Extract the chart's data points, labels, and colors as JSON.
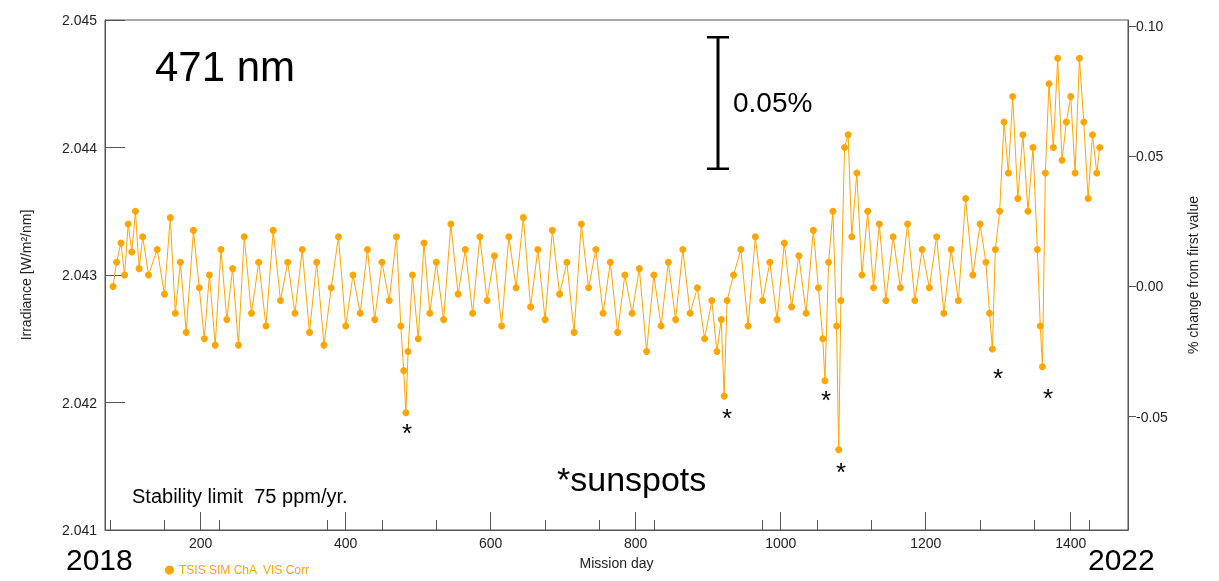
{
  "chart_data": {
    "type": "line",
    "title": "471 nm",
    "xlabel": "Mission day",
    "ylabel": "Irradiance [W/m²/nm]",
    "y2label": "% change from first value",
    "x": [
      79,
      84,
      90,
      95,
      100,
      105,
      110,
      115,
      120,
      128,
      140,
      150,
      158,
      165,
      172,
      180,
      190,
      198,
      205,
      212,
      220,
      228,
      236,
      244,
      252,
      260,
      270,
      280,
      290,
      300,
      310,
      320,
      330,
      340,
      350,
      360,
      370,
      380,
      390,
      400,
      410,
      420,
      430,
      440,
      450,
      460,
      470,
      476,
      480,
      483,
      486,
      492,
      500,
      508,
      516,
      525,
      535,
      545,
      555,
      565,
      575,
      585,
      595,
      605,
      615,
      625,
      635,
      645,
      655,
      665,
      675,
      685,
      695,
      705,
      715,
      725,
      735,
      745,
      755,
      765,
      775,
      785,
      795,
      805,
      815,
      825,
      835,
      845,
      855,
      865,
      875,
      885,
      895,
      905,
      912,
      918,
      922,
      926,
      935,
      945,
      955,
      965,
      975,
      985,
      995,
      1005,
      1015,
      1025,
      1035,
      1045,
      1052,
      1058,
      1061,
      1066,
      1072,
      1077,
      1080,
      1083,
      1088,
      1093,
      1098,
      1105,
      1112,
      1120,
      1128,
      1136,
      1145,
      1155,
      1165,
      1175,
      1185,
      1195,
      1205,
      1215,
      1225,
      1235,
      1245,
      1255,
      1265,
      1275,
      1283,
      1288,
      1292,
      1296,
      1302,
      1308,
      1314,
      1320,
      1327,
      1334,
      1341,
      1348,
      1354,
      1358,
      1361,
      1365,
      1370,
      1376,
      1382,
      1388,
      1394,
      1400,
      1406,
      1412,
      1418,
      1424,
      1430,
      1436,
      1440
    ],
    "series": [
      {
        "name": "TSIS SIM ChA  VIS Corr",
        "color": "#ffa500",
        "values": [
          2.04291,
          2.0431,
          2.04325,
          2.043,
          2.0434,
          2.04318,
          2.0435,
          2.04305,
          2.0433,
          2.043,
          2.0432,
          2.04285,
          2.04345,
          2.0427,
          2.0431,
          2.04255,
          2.04335,
          2.0429,
          2.0425,
          2.043,
          2.04245,
          2.0432,
          2.04265,
          2.04305,
          2.04245,
          2.0433,
          2.0427,
          2.0431,
          2.0426,
          2.04335,
          2.0428,
          2.0431,
          2.0427,
          2.0432,
          2.04255,
          2.0431,
          2.04245,
          2.0429,
          2.0433,
          2.0426,
          2.043,
          2.0427,
          2.0432,
          2.04265,
          2.0431,
          2.0428,
          2.0433,
          2.0426,
          2.04225,
          2.04192,
          2.0424,
          2.043,
          2.0425,
          2.04325,
          2.0427,
          2.0431,
          2.04265,
          2.0434,
          2.04285,
          2.0432,
          2.0427,
          2.0433,
          2.0428,
          2.04315,
          2.0426,
          2.0433,
          2.0429,
          2.04345,
          2.04275,
          2.0432,
          2.04265,
          2.04335,
          2.04285,
          2.0431,
          2.04255,
          2.0434,
          2.0429,
          2.0432,
          2.0427,
          2.0431,
          2.04255,
          2.043,
          2.0427,
          2.04305,
          2.0424,
          2.043,
          2.0426,
          2.0431,
          2.04265,
          2.0432,
          2.0427,
          2.0429,
          2.0425,
          2.0428,
          2.0424,
          2.04265,
          2.04205,
          2.0428,
          2.043,
          2.0432,
          2.0426,
          2.0433,
          2.0428,
          2.0431,
          2.04265,
          2.04325,
          2.04275,
          2.04315,
          2.0427,
          2.04335,
          2.0429,
          2.0425,
          2.04217,
          2.0431,
          2.0435,
          2.0426,
          2.04163,
          2.0428,
          2.044,
          2.0441,
          2.0433,
          2.0438,
          2.043,
          2.0435,
          2.0429,
          2.0434,
          2.0428,
          2.0433,
          2.0429,
          2.0434,
          2.0428,
          2.0432,
          2.0429,
          2.0433,
          2.0427,
          2.0432,
          2.0428,
          2.0436,
          2.043,
          2.0434,
          2.0431,
          2.0427,
          2.04242,
          2.0432,
          2.0435,
          2.0442,
          2.0438,
          2.0444,
          2.0436,
          2.0441,
          2.0435,
          2.044,
          2.0432,
          2.0426,
          2.04228,
          2.0438,
          2.0445,
          2.044,
          2.0447,
          2.0439,
          2.0442,
          2.0444,
          2.0438,
          2.0447,
          2.0442,
          2.0436,
          2.0441,
          2.0438,
          2.044
        ]
      }
    ],
    "xlim": [
      68,
      1479
    ],
    "xticks": [
      200,
      400,
      600,
      800,
      1000,
      1200,
      1400
    ],
    "ylim": [
      2.041,
      2.045
    ],
    "yticks": [
      2.041,
      2.042,
      2.043,
      2.044,
      2.045
    ],
    "y2lim": [
      -0.0935,
      0.1023
    ],
    "y2ticks": [
      {
        "value": -0.05,
        "label": "-0.05"
      },
      {
        "value": 0,
        "label": "0.00"
      },
      {
        "value": 0.05,
        "label": "0.05"
      },
      {
        "value": 0.1,
        "label": "0.10"
      }
    ],
    "annotations": [
      "0.05%",
      "*sunspots",
      "Stability limit  75 ppm/yr.",
      "2018",
      "2022",
      "*",
      "*",
      "*",
      "*",
      "*",
      "*"
    ],
    "marker": "circle",
    "line_style": "solid",
    "grid": false,
    "legend": "bottom left"
  }
}
